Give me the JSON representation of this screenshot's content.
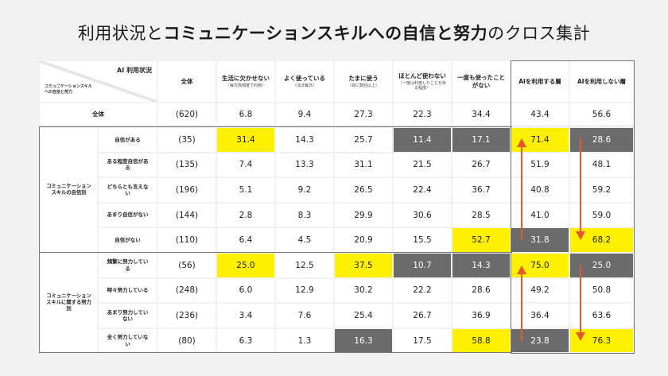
{
  "title": {
    "part1": "利用状況と",
    "part2": "コミュニケーションスキルへの自信と努力",
    "part3": "のクロス集計"
  },
  "corner": {
    "col_axis": "AI 利用状況",
    "row_axis_line1": "コミュニケーションスキル",
    "row_axis_line2": "への自信と努力"
  },
  "columns": [
    {
      "label": "全体",
      "sub": ""
    },
    {
      "label": "生活に欠かせない",
      "sub": "（毎日高頻度で利用）"
    },
    {
      "label": "よく使っている",
      "sub": "（ほぼ毎日）"
    },
    {
      "label": "たまに使う",
      "sub": "（週に数回以上）"
    },
    {
      "label": "ほとんど使わない",
      "sub": "（一度は利用したことがある程度）"
    },
    {
      "label": "一度も使ったことがない",
      "sub": ""
    },
    {
      "label": "AIを利用する層",
      "sub": ""
    },
    {
      "label": "AIを利用しない層",
      "sub": ""
    }
  ],
  "total_row": {
    "label": "全体",
    "n": "(620)",
    "values": [
      "6.8",
      "9.4",
      "27.3",
      "22.3",
      "34.4",
      "43.4",
      "56.6"
    ]
  },
  "groups": [
    {
      "label": "コミュニケーションスキルの自信別",
      "rows": [
        {
          "label": "自信がある",
          "n": "(35)",
          "values": [
            "31.4",
            "14.3",
            "25.7",
            "11.4",
            "17.1",
            "71.4",
            "28.6"
          ],
          "highlight": [
            "yellow",
            "",
            "",
            "gray",
            "gray",
            "yellow",
            "gray"
          ]
        },
        {
          "label": "ある程度自信がある",
          "n": "(135)",
          "values": [
            "7.4",
            "13.3",
            "31.1",
            "21.5",
            "26.7",
            "51.9",
            "48.1"
          ],
          "highlight": [
            "",
            "",
            "",
            "",
            "",
            "",
            ""
          ]
        },
        {
          "label": "どちらとも言えない",
          "n": "(196)",
          "values": [
            "5.1",
            "9.2",
            "26.5",
            "22.4",
            "36.7",
            "40.8",
            "59.2"
          ],
          "highlight": [
            "",
            "",
            "",
            "",
            "",
            "",
            ""
          ]
        },
        {
          "label": "あまり自信がない",
          "n": "(144)",
          "values": [
            "2.8",
            "8.3",
            "29.9",
            "30.6",
            "28.5",
            "41.0",
            "59.0"
          ],
          "highlight": [
            "",
            "",
            "",
            "",
            "",
            "",
            ""
          ]
        },
        {
          "label": "自信がない",
          "n": "(110)",
          "values": [
            "6.4",
            "4.5",
            "20.9",
            "15.5",
            "52.7",
            "31.8",
            "68.2"
          ],
          "highlight": [
            "",
            "",
            "",
            "",
            "yellow",
            "gray",
            "yellow"
          ]
        }
      ]
    },
    {
      "label": "コミュニケーションスキルに関する努力別",
      "rows": [
        {
          "label": "頻繁に努力している",
          "n": "(56)",
          "values": [
            "25.0",
            "12.5",
            "37.5",
            "10.7",
            "14.3",
            "75.0",
            "25.0"
          ],
          "highlight": [
            "yellow",
            "",
            "yellow",
            "gray",
            "gray",
            "yellow",
            "gray"
          ]
        },
        {
          "label": "時々努力している",
          "n": "(248)",
          "values": [
            "6.0",
            "12.9",
            "30.2",
            "22.2",
            "28.6",
            "49.2",
            "50.8"
          ],
          "highlight": [
            "",
            "",
            "",
            "",
            "",
            "",
            ""
          ]
        },
        {
          "label": "あまり努力していない",
          "n": "(236)",
          "values": [
            "3.4",
            "7.6",
            "25.4",
            "26.7",
            "36.9",
            "36.4",
            "63.6"
          ],
          "highlight": [
            "",
            "",
            "",
            "",
            "",
            "",
            ""
          ]
        },
        {
          "label": "全く努力していない",
          "n": "(80)",
          "values": [
            "6.3",
            "1.3",
            "16.3",
            "17.5",
            "58.8",
            "23.8",
            "76.3"
          ],
          "highlight": [
            "",
            "",
            "gray",
            "",
            "yellow",
            "gray",
            "yellow"
          ]
        }
      ]
    }
  ],
  "colors": {
    "background": "#f1f1f1",
    "cell": "#ffffff",
    "highlight_high": "#fff000",
    "highlight_low": "#6b6b6b",
    "arrow": "#e8592a",
    "frame": "#777777"
  },
  "annotations": {
    "arrow_up_icon": "AIを利用する層 column: upward arrow from low-confidence/effort to high",
    "arrow_down_icon": "AIを利用しない層 column: downward arrow from high-confidence/effort to low"
  }
}
